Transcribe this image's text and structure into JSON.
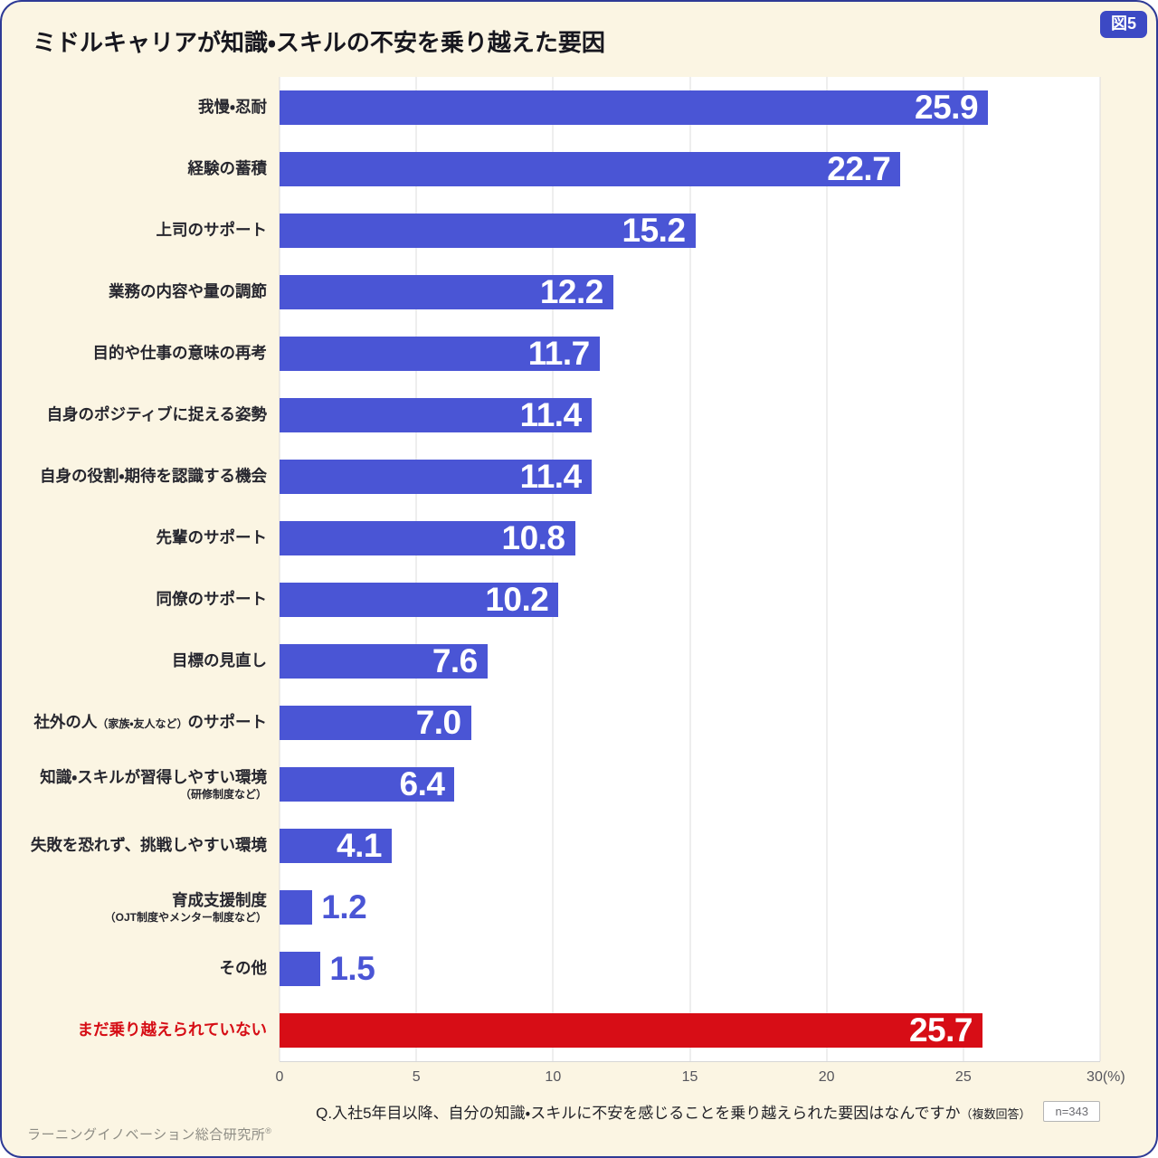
{
  "page": {
    "badge": "図5",
    "title": "ミドルキャリアが知識・スキルの不安を乗り越えた要因",
    "question": "Q.入社5年目以降、自分の知識・スキルに不安を感じることを乗り越えられた要因はなんですか",
    "question_suffix": "（複数回答）",
    "sample": "n=343",
    "footer": "ラーニングイノベーション総合研究所",
    "footer_mark": "®"
  },
  "colors": {
    "background": "#FBF5E3",
    "plot_background": "#ffffff",
    "grid": "#dcdcdc",
    "bar_blue": "#4a55d5",
    "bar_red": "#d70d16",
    "value_inside": "#ffffff",
    "value_outside_blue": "#4a55d5",
    "label_red": "#d60d15",
    "badge_background": "#3c49c4"
  },
  "chart_data": {
    "type": "bar",
    "orientation": "horizontal",
    "title": "ミドルキャリアが知識・スキルの不安を乗り越えた要因",
    "xlabel": "(%)",
    "xlim": [
      0,
      30
    ],
    "xticks": [
      0,
      5,
      10,
      15,
      20,
      25,
      30
    ],
    "xtick_labels": [
      "0",
      "5",
      "10",
      "15",
      "20",
      "25",
      "30(%)"
    ],
    "grid": true,
    "rows": [
      {
        "label": "我慢・忍耐",
        "value": 25.9
      },
      {
        "label": "経験の蓄積",
        "value": 22.7
      },
      {
        "label": "上司のサポート",
        "value": 15.2
      },
      {
        "label": "業務の内容や量の調節",
        "value": 12.2
      },
      {
        "label": "目的や仕事の意味の再考",
        "value": 11.7
      },
      {
        "label": "自身のポジティブに捉える姿勢",
        "value": 11.4
      },
      {
        "label": "自身の役割・期待を認識する機会",
        "value": 11.4
      },
      {
        "label": "先輩のサポート",
        "value": 10.8
      },
      {
        "label": "同僚のサポート",
        "value": 10.2
      },
      {
        "label": "目標の見直し",
        "value": 7.6
      },
      {
        "label": "社外の人",
        "small_inline": "（家族・友人など）",
        "tail": "のサポート",
        "value": 7.0
      },
      {
        "label": "知識・スキルが習得しやすい環境",
        "sub": "（研修制度など）",
        "value": 6.4
      },
      {
        "label": "失敗を恐れず、挑戦しやすい環境",
        "value": 4.1
      },
      {
        "label": "育成支援制度",
        "sub": "（OJT制度やメンター制度など）",
        "value": 1.2,
        "value_inside": false
      },
      {
        "label": "その他",
        "value": 1.5,
        "value_inside": false
      },
      {
        "label": "まだ乗り越えられていない",
        "value": 25.7,
        "color": "red"
      }
    ]
  }
}
